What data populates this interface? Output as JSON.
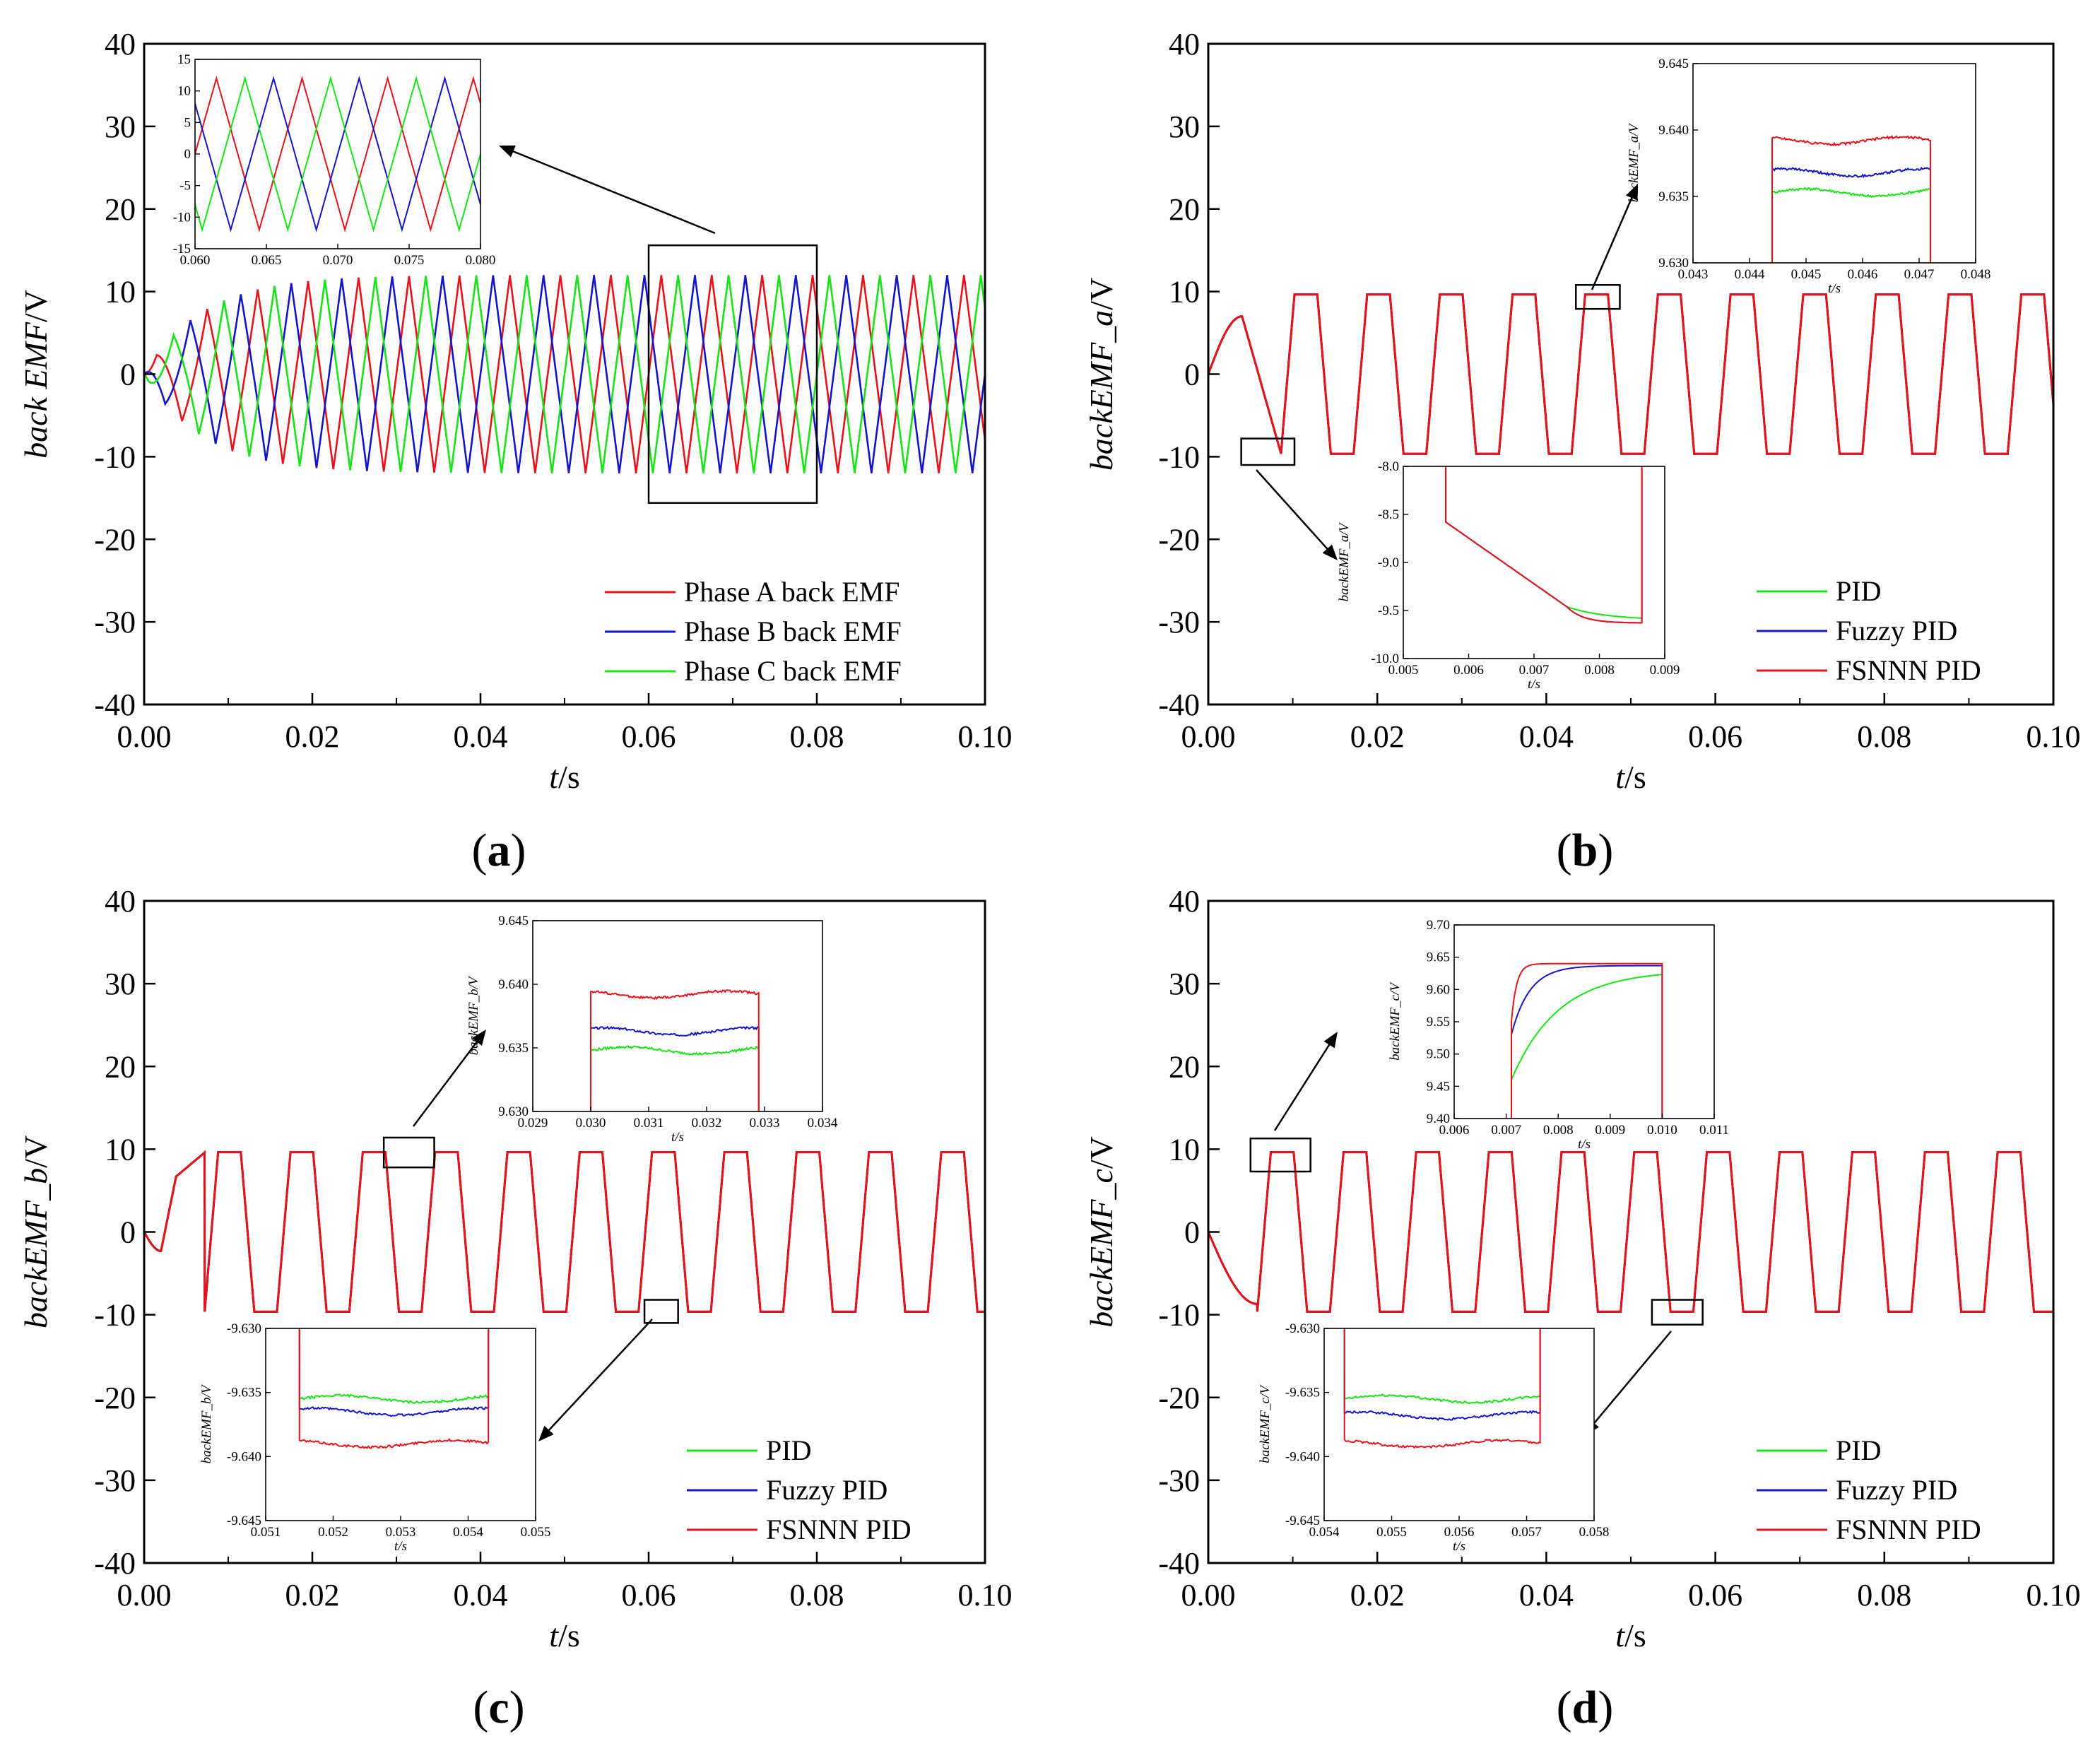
{
  "figure": {
    "panel_labels": {
      "a": "a",
      "b": "b",
      "c": "c",
      "d": "d"
    }
  },
  "chart_data": [
    {
      "id": "a",
      "type": "line",
      "xlabel_italic": "t",
      "xlabel_unit": "/s",
      "ylabel_italic": "back EMF",
      "ylabel_unit": "/V",
      "xlim": [
        0,
        0.1
      ],
      "ylim": [
        -40,
        40
      ],
      "xticks": [
        "0.00",
        "0.02",
        "0.04",
        "0.06",
        "0.08",
        "0.10"
      ],
      "yticks": [
        "-40",
        "-30",
        "-20",
        "-10",
        "0",
        "10",
        "20",
        "30",
        "40"
      ],
      "series": [
        {
          "name": "Phase A back EMF",
          "color": "#e8121b"
        },
        {
          "name": "Phase B back EMF",
          "color": "#1414c8"
        },
        {
          "name": "Phase C back EMF",
          "color": "#17e317"
        }
      ],
      "signal": {
        "amplitude": 12,
        "period": 0.006,
        "time_constant": 0.007
      },
      "legend_position": "bottom-right",
      "zoom_box": {
        "x": [
          0.06,
          0.08
        ],
        "y": [
          -15.6,
          15.6
        ]
      },
      "inset": {
        "xlim": [
          0.06,
          0.08
        ],
        "ylim": [
          -15,
          15
        ],
        "xticks": [
          "0.060",
          "0.065",
          "0.070",
          "0.075",
          "0.080"
        ],
        "yticks": [
          "-15",
          "-10",
          "-5",
          "0",
          "5",
          "10",
          "15"
        ]
      }
    },
    {
      "id": "b",
      "type": "line",
      "xlabel_italic": "t",
      "xlabel_unit": "/s",
      "ylabel_italic": "backEMF_a",
      "ylabel_unit": "/V",
      "xlim": [
        0,
        0.1
      ],
      "ylim": [
        -40,
        40
      ],
      "xticks": [
        "0.00",
        "0.02",
        "0.04",
        "0.06",
        "0.08",
        "0.10"
      ],
      "yticks": [
        "-40",
        "-30",
        "-20",
        "-10",
        "0",
        "10",
        "20",
        "30",
        "40"
      ],
      "series": [
        {
          "name": "PID",
          "color": "#17e317"
        },
        {
          "name": "Fuzzy PID",
          "color": "#1414c8"
        },
        {
          "name": "FSNNN PID",
          "color": "#e8121b"
        }
      ],
      "signal": {
        "amplitude": 9.64,
        "period": 0.0086,
        "first_edge": 0.0086
      },
      "legend_position": "bottom-right",
      "zoom_boxes": [
        {
          "x": [
            0.0435,
            0.0487
          ],
          "y": [
            7.9,
            10.8
          ]
        },
        {
          "x": [
            0.0039,
            0.0102
          ],
          "y": [
            -11.0,
            -7.8
          ]
        }
      ],
      "insets": [
        {
          "ylabel": "backEMF_a/V",
          "xlabel": "t/s",
          "xlim": [
            0.043,
            0.048
          ],
          "ylim": [
            9.63,
            9.645
          ],
          "xticks": [
            "0.043",
            "0.044",
            "0.045",
            "0.046",
            "0.047",
            "0.048"
          ],
          "yticks": [
            "9.630",
            "9.635",
            "9.640",
            "9.645"
          ],
          "plateau": {
            "x": [
              0.0444,
              0.0472
            ],
            "PID": 9.6353,
            "Fuzzy PID": 9.6368,
            "FSNNN PID": 9.6392
          }
        },
        {
          "ylabel": "backEMF_a/V",
          "xlabel": "t/s",
          "xlim": [
            0.005,
            0.009
          ],
          "ylim": [
            -10.0,
            -8.0
          ],
          "xticks": [
            "0.005",
            "0.006",
            "0.007",
            "0.008",
            "0.009"
          ],
          "yticks": [
            "-10.0",
            "-9.5",
            "-9.0",
            "-8.5",
            "-8.0"
          ],
          "plateau": {
            "x": [
              0.00565,
              0.00865
            ],
            "PID": -9.6,
            "Fuzzy PID": -9.63,
            "FSNNN PID": -9.63
          }
        }
      ]
    },
    {
      "id": "c",
      "type": "line",
      "xlabel_italic": "t",
      "xlabel_unit": "/s",
      "ylabel_italic": "backEMF_b",
      "ylabel_unit": "/V",
      "xlim": [
        0,
        0.1
      ],
      "ylim": [
        -40,
        40
      ],
      "xticks": [
        "0.00",
        "0.02",
        "0.04",
        "0.06",
        "0.08",
        "0.10"
      ],
      "yticks": [
        "-40",
        "-30",
        "-20",
        "-10",
        "0",
        "10",
        "20",
        "30",
        "40"
      ],
      "series": [
        {
          "name": "PID",
          "color": "#17e317"
        },
        {
          "name": "Fuzzy PID",
          "color": "#1414c8"
        },
        {
          "name": "FSNNN PID",
          "color": "#e8121b"
        }
      ],
      "signal": {
        "amplitude": 9.64,
        "period": 0.0086,
        "first_edge": 0.0072
      },
      "legend_position": "bottom-right",
      "zoom_boxes": [
        {
          "x": [
            0.0285,
            0.0345
          ],
          "y": [
            7.8,
            11.4
          ]
        },
        {
          "x": [
            0.0595,
            0.0635
          ],
          "y": [
            -11.0,
            -8.2
          ]
        }
      ],
      "insets": [
        {
          "ylabel": "backEMF_b/V",
          "xlabel": "t/s",
          "xlim": [
            0.029,
            0.034
          ],
          "ylim": [
            9.63,
            9.645
          ],
          "xticks": [
            "0.029",
            "0.030",
            "0.031",
            "0.032",
            "0.033",
            "0.034"
          ],
          "yticks": [
            "9.630",
            "9.635",
            "9.640",
            "9.645"
          ],
          "plateau": {
            "x": [
              0.03,
              0.0329
            ],
            "PID": 9.6348,
            "Fuzzy PID": 9.6363,
            "FSNNN PID": 9.6392
          }
        },
        {
          "ylabel": "backEMF_b/V",
          "xlabel": "t/s",
          "xlim": [
            0.051,
            0.055
          ],
          "ylim": [
            -9.645,
            -9.63
          ],
          "xticks": [
            "0.051",
            "0.052",
            "0.053",
            "0.054",
            "0.055"
          ],
          "yticks": [
            "-9.645",
            "-9.640",
            "-9.635",
            "-9.630"
          ],
          "plateau": {
            "x": [
              0.0515,
              0.0543
            ],
            "PID": -9.6355,
            "Fuzzy PID": -9.6365,
            "FSNNN PID": -9.639
          }
        }
      ]
    },
    {
      "id": "d",
      "type": "line",
      "xlabel_italic": "t",
      "xlabel_unit": "/s",
      "ylabel_italic": "backEMF_c",
      "ylabel_unit": "/V",
      "xlim": [
        0,
        0.1
      ],
      "ylim": [
        -40,
        40
      ],
      "xticks": [
        "0.00",
        "0.02",
        "0.04",
        "0.06",
        "0.08",
        "0.10"
      ],
      "yticks": [
        "-40",
        "-30",
        "-20",
        "-10",
        "0",
        "10",
        "20",
        "30",
        "40"
      ],
      "series": [
        {
          "name": "PID",
          "color": "#17e317"
        },
        {
          "name": "Fuzzy PID",
          "color": "#1414c8"
        },
        {
          "name": "FSNNN PID",
          "color": "#e8121b"
        }
      ],
      "signal": {
        "amplitude": 9.64,
        "period": 0.0086,
        "first_edge": 0.0058
      },
      "legend_position": "bottom-right",
      "zoom_boxes": [
        {
          "x": [
            0.005,
            0.0121
          ],
          "y": [
            7.3,
            11.3
          ]
        },
        {
          "x": [
            0.0525,
            0.0585
          ],
          "y": [
            -11.2,
            -8.2
          ]
        }
      ],
      "insets": [
        {
          "ylabel": "backEMF_c/V",
          "xlabel": "t/s",
          "xlim": [
            0.006,
            0.011
          ],
          "ylim": [
            9.4,
            9.7
          ],
          "xticks": [
            "0.006",
            "0.007",
            "0.008",
            "0.009",
            "0.010",
            "0.011"
          ],
          "yticks": [
            "9.40",
            "9.45",
            "9.50",
            "9.55",
            "9.60",
            "9.65",
            "9.70"
          ],
          "plateau": {
            "x": [
              0.0071,
              0.01
            ],
            "PID": 9.63,
            "Fuzzy PID": 9.637,
            "FSNNN PID": 9.64
          }
        },
        {
          "ylabel": "backEMF_c/V",
          "xlabel": "t/s",
          "xlim": [
            0.054,
            0.058
          ],
          "ylim": [
            -9.645,
            -9.63
          ],
          "xticks": [
            "0.054",
            "0.055",
            "0.056",
            "0.057",
            "0.058"
          ],
          "yticks": [
            "-9.645",
            "-9.640",
            "-9.635",
            "-9.630"
          ],
          "plateau": {
            "x": [
              0.0543,
              0.0572
            ],
            "PID": -9.6355,
            "Fuzzy PID": -9.6368,
            "FSNNN PID": -9.639
          }
        }
      ]
    }
  ]
}
